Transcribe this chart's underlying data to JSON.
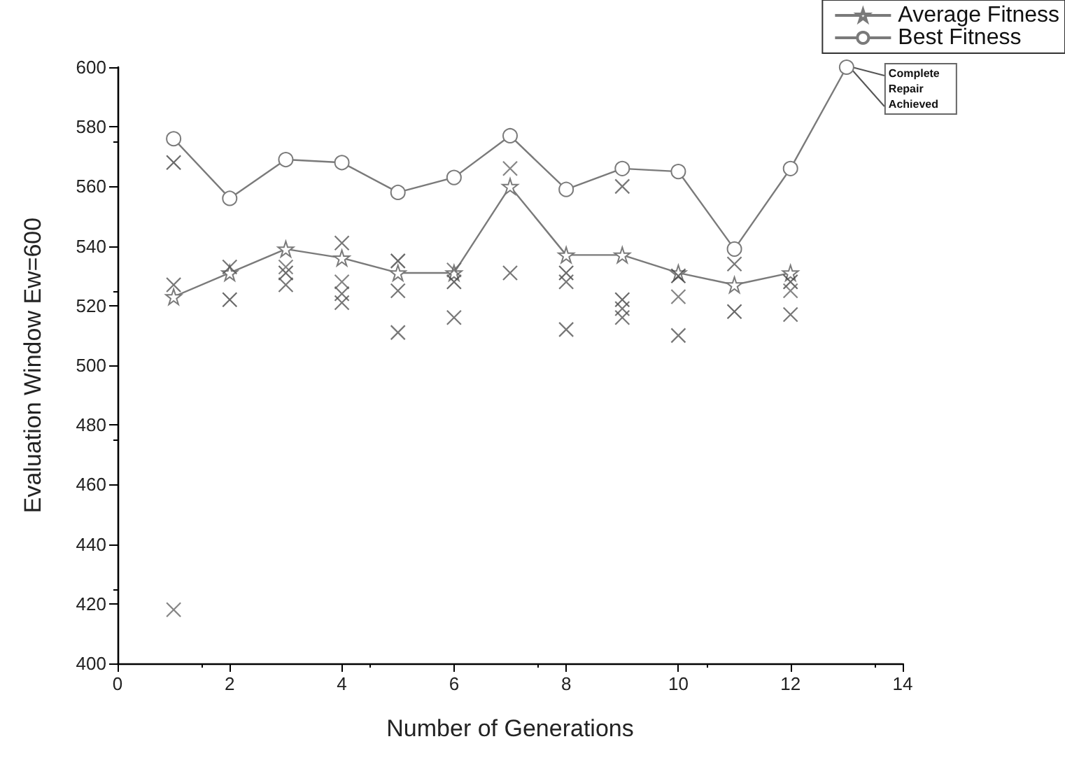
{
  "chart_data": {
    "type": "line",
    "xlabel": "Number of Generations",
    "ylabel": "Evaluation Window Ew=600",
    "xlim": [
      0,
      14
    ],
    "xticks": [
      0,
      2,
      4,
      6,
      8,
      10,
      12,
      14
    ],
    "ylim": [
      400,
      600
    ],
    "yticks": [
      400,
      420,
      440,
      460,
      480,
      500,
      520,
      540,
      560,
      580,
      600
    ],
    "grid": false,
    "legend": "top right",
    "series": [
      {
        "name": "Average Fitness",
        "marker": "star",
        "color": "#7a7a7a",
        "x": [
          1,
          2,
          3,
          4,
          5,
          6,
          7,
          8,
          9,
          10,
          11,
          12
        ],
        "values": [
          523,
          531,
          539,
          536,
          531,
          531,
          560,
          537,
          537,
          531,
          527,
          531
        ]
      },
      {
        "name": "Best Fitness",
        "marker": "circle",
        "color": "#7a7a7a",
        "x": [
          1,
          2,
          3,
          4,
          5,
          6,
          7,
          8,
          9,
          10,
          11,
          12,
          13
        ],
        "values": [
          576,
          556,
          569,
          568,
          558,
          563,
          577,
          559,
          566,
          565,
          539,
          566,
          600
        ]
      },
      {
        "type": "scatter",
        "marker": "cross",
        "color": "#444444",
        "x": [
          1,
          2,
          3,
          5,
          6,
          8,
          9,
          10,
          11,
          12
        ],
        "values": [
          568,
          522,
          531,
          535,
          528,
          531,
          522,
          530,
          518,
          528
        ]
      },
      {
        "type": "scatter",
        "marker": "cross",
        "color": "#666666",
        "x": [
          1,
          3,
          4,
          6,
          7,
          10,
          12
        ],
        "values": [
          418,
          533,
          528,
          532,
          566,
          523,
          525
        ]
      },
      {
        "type": "scatter",
        "marker": "cross",
        "color": "#555555",
        "x": [
          1,
          2,
          3,
          4,
          5,
          6,
          7,
          8,
          9,
          11,
          12
        ],
        "values": [
          527,
          533,
          527,
          524,
          525,
          516,
          531,
          528,
          519,
          534,
          517
        ]
      },
      {
        "type": "scatter",
        "marker": "cross",
        "color": "#555555",
        "x": [
          4,
          5,
          8,
          9,
          10
        ],
        "values": [
          521,
          511,
          512,
          516,
          510
        ]
      },
      {
        "type": "scatter",
        "marker": "cross",
        "color": "#555555",
        "x": [
          4,
          9
        ],
        "values": [
          541,
          560
        ]
      }
    ],
    "annotations": [
      {
        "text": "Complete Repair Achieved",
        "x": 13,
        "y": 600
      }
    ]
  }
}
